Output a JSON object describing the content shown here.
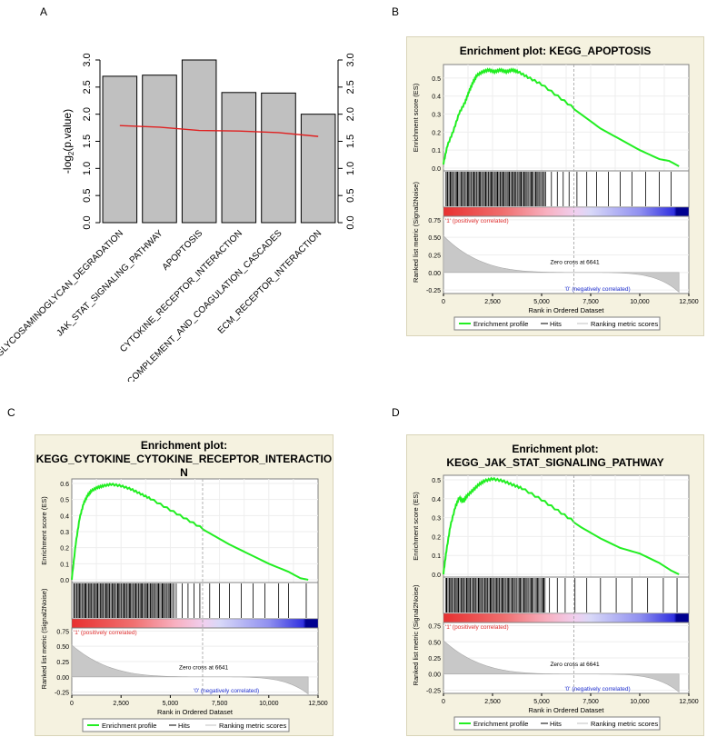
{
  "panels": {
    "A": "A",
    "B": "B",
    "C": "C",
    "D": "D"
  },
  "chart_data": [
    {
      "id": "A",
      "type": "bar",
      "title": "",
      "xlabel": "",
      "ylabel": "-log2(p.value)",
      "ylabel_main": "-log",
      "ylabel_sub": "2",
      "ylabel_tail": "(p.value)",
      "ylim": [
        0,
        3.0
      ],
      "yticks": [
        "0.0",
        "0.5",
        "1.0",
        "1.5",
        "2.0",
        "2.5",
        "3.0"
      ],
      "categories": [
        "GLYCOSAMINOGLYCAN_DEGRADATION",
        "JAK_STAT_SIGNALING_PATHWAY",
        "APOPTOSIS",
        "CYTOKINE_RECEPTOR_INTERACTION",
        "COMPLEMENT_AND_COAGULATION_CASCADES",
        "ECM_RECEPTOR_INTERACTION"
      ],
      "series": [
        {
          "name": "bars",
          "values": [
            2.7,
            2.72,
            3.0,
            2.4,
            2.39,
            2.0
          ],
          "color": "#c0c0c0"
        },
        {
          "name": "line",
          "values": [
            1.79,
            1.76,
            1.7,
            1.69,
            1.66,
            1.59
          ],
          "color": "#e02020"
        }
      ],
      "grid": false
    },
    {
      "id": "B",
      "type": "line",
      "title": "Enrichment plot: KEGG_APOPTOSIS",
      "title_lines": [
        "Enrichment plot: KEGG_APOPTOSIS"
      ],
      "es_ylabel": "Enrichment score (ES)",
      "es_ylim": [
        0,
        0.55
      ],
      "es_yticks": [
        "0.0",
        "0.1",
        "0.2",
        "0.3",
        "0.4",
        "0.5"
      ],
      "metric_ylabel": "Ranked list metric (Signal2Noise)",
      "metric_yticks": [
        "0.75",
        "0.50",
        "0.25",
        "0.00",
        "-0.25"
      ],
      "xlabel": "Rank in Ordered Dataset",
      "xlim": [
        0,
        12500
      ],
      "xticks": [
        "0",
        "2,500",
        "5,000",
        "7,500",
        "10,000",
        "12,500"
      ],
      "es_x": [
        0,
        200,
        500,
        800,
        1100,
        1300,
        1500,
        1700,
        2000,
        2300,
        2600,
        2900,
        3200,
        3500,
        3800,
        4300,
        5000,
        6000,
        7000,
        8000,
        9000,
        10000,
        11000,
        11500,
        12000
      ],
      "es_y": [
        0.02,
        0.12,
        0.2,
        0.3,
        0.36,
        0.42,
        0.47,
        0.51,
        0.53,
        0.54,
        0.53,
        0.54,
        0.53,
        0.54,
        0.53,
        0.5,
        0.46,
        0.38,
        0.3,
        0.22,
        0.16,
        0.1,
        0.05,
        0.04,
        0.01
      ],
      "hits": [
        200,
        350,
        500,
        700,
        900,
        1100,
        1250,
        1400,
        1550,
        1700,
        1850,
        2000,
        2150,
        2300,
        2450,
        2600,
        2750,
        2900,
        3050,
        3200,
        3350,
        3500,
        3650,
        3800,
        3950,
        4100,
        4300,
        4500,
        4700,
        4900,
        5200,
        5500,
        5800,
        6100,
        6400,
        6800,
        7300,
        7800,
        8400,
        9000,
        9600,
        10300,
        11000,
        11600
      ],
      "zero_cross_label": "Zero cross at 6641",
      "zero_cross": 6641,
      "pos_label": "'1' (positively correlated)",
      "neg_label": "'0' (negatively correlated)",
      "legend": [
        "Enrichment profile",
        "Hits",
        "Ranking metric scores"
      ]
    },
    {
      "id": "C",
      "type": "line",
      "title": "Enrichment plot: KEGG_CYTOKINE_CYTOKINE_RECEPTOR_INTERACTION",
      "title_lines": [
        "Enrichment plot:",
        "KEGG_CYTOKINE_CYTOKINE_RECEPTOR_INTERACTIO",
        "N"
      ],
      "es_ylabel": "Enrichment score (ES)",
      "es_ylim": [
        0,
        0.6
      ],
      "es_yticks": [
        "0.0",
        "0.1",
        "0.2",
        "0.3",
        "0.4",
        "0.5",
        "0.6"
      ],
      "metric_ylabel": "Ranked list metric (Signal2Noise)",
      "metric_yticks": [
        "0.75",
        "0.50",
        "0.25",
        "0.00",
        "-0.25"
      ],
      "xlabel": "Rank in Ordered Dataset",
      "xlim": [
        0,
        12500
      ],
      "xticks": [
        "0",
        "2,500",
        "5,000",
        "7,500",
        "10,000",
        "12,500"
      ],
      "es_x": [
        0,
        200,
        400,
        600,
        800,
        1000,
        1300,
        1600,
        2000,
        2500,
        3000,
        3500,
        4000,
        5000,
        6000,
        7000,
        8000,
        9000,
        10000,
        11000,
        11600,
        12000
      ],
      "es_y": [
        0.0,
        0.22,
        0.38,
        0.47,
        0.52,
        0.55,
        0.57,
        0.58,
        0.59,
        0.58,
        0.56,
        0.53,
        0.5,
        0.43,
        0.36,
        0.29,
        0.22,
        0.16,
        0.1,
        0.05,
        0.01,
        0.0
      ],
      "hits": [
        100,
        250,
        400,
        550,
        700,
        850,
        1000,
        1150,
        1300,
        1450,
        1600,
        1750,
        1900,
        2050,
        2200,
        2350,
        2500,
        2650,
        2800,
        2950,
        3100,
        3250,
        3400,
        3550,
        3700,
        3850,
        4000,
        4200,
        4400,
        4600,
        4800,
        5000,
        5300,
        5600,
        5900,
        6200,
        6500,
        7000,
        7500,
        8000,
        8600,
        9200,
        9800,
        10500,
        11000,
        11900
      ],
      "zero_cross_label": "Zero cross at 6641",
      "zero_cross": 6641,
      "pos_label": "'1' (positively correlated)",
      "neg_label": "'0' (negatively correlated)",
      "legend": [
        "Enrichment profile",
        "Hits",
        "Ranking metric scores"
      ]
    },
    {
      "id": "D",
      "type": "line",
      "title": "Enrichment plot: KEGG_JAK_STAT_SIGNALING_PATHWAY",
      "title_lines": [
        "Enrichment plot:",
        "KEGG_JAK_STAT_SIGNALING_PATHWAY"
      ],
      "es_ylabel": "Enrichment score (ES)",
      "es_ylim": [
        0,
        0.5
      ],
      "es_yticks": [
        "0.0",
        "0.1",
        "0.2",
        "0.3",
        "0.4",
        "0.5"
      ],
      "metric_ylabel": "Ranked list metric (Signal2Noise)",
      "metric_yticks": [
        "0.75",
        "0.50",
        "0.25",
        "0.00",
        "-0.25"
      ],
      "xlabel": "Rank in Ordered Dataset",
      "xlim": [
        0,
        12500
      ],
      "xticks": [
        "0",
        "2,500",
        "5,000",
        "7,500",
        "10,000",
        "12,500"
      ],
      "es_x": [
        0,
        150,
        350,
        600,
        800,
        1000,
        1200,
        1500,
        1800,
        2100,
        2500,
        3000,
        3500,
        4000,
        5000,
        6000,
        7000,
        8000,
        9000,
        10000,
        11000,
        11600,
        12000
      ],
      "es_y": [
        0.0,
        0.12,
        0.25,
        0.35,
        0.4,
        0.38,
        0.41,
        0.44,
        0.47,
        0.49,
        0.5,
        0.49,
        0.47,
        0.45,
        0.39,
        0.32,
        0.25,
        0.19,
        0.14,
        0.11,
        0.06,
        0.02,
        0.0
      ],
      "hits": [
        150,
        300,
        450,
        600,
        750,
        900,
        1050,
        1200,
        1350,
        1500,
        1650,
        1800,
        1950,
        2100,
        2250,
        2400,
        2550,
        2700,
        2850,
        3000,
        3150,
        3300,
        3500,
        3700,
        3900,
        4100,
        4300,
        4500,
        4800,
        5100,
        5400,
        5800,
        6200,
        6700,
        7300,
        8000,
        8800,
        9600,
        10400,
        11200,
        11900
      ],
      "zero_cross_label": "Zero cross at 6641",
      "zero_cross": 6641,
      "pos_label": "'1' (positively correlated)",
      "neg_label": "'0' (negatively correlated)",
      "legend": [
        "Enrichment profile",
        "Hits",
        "Ranking metric scores"
      ]
    }
  ]
}
